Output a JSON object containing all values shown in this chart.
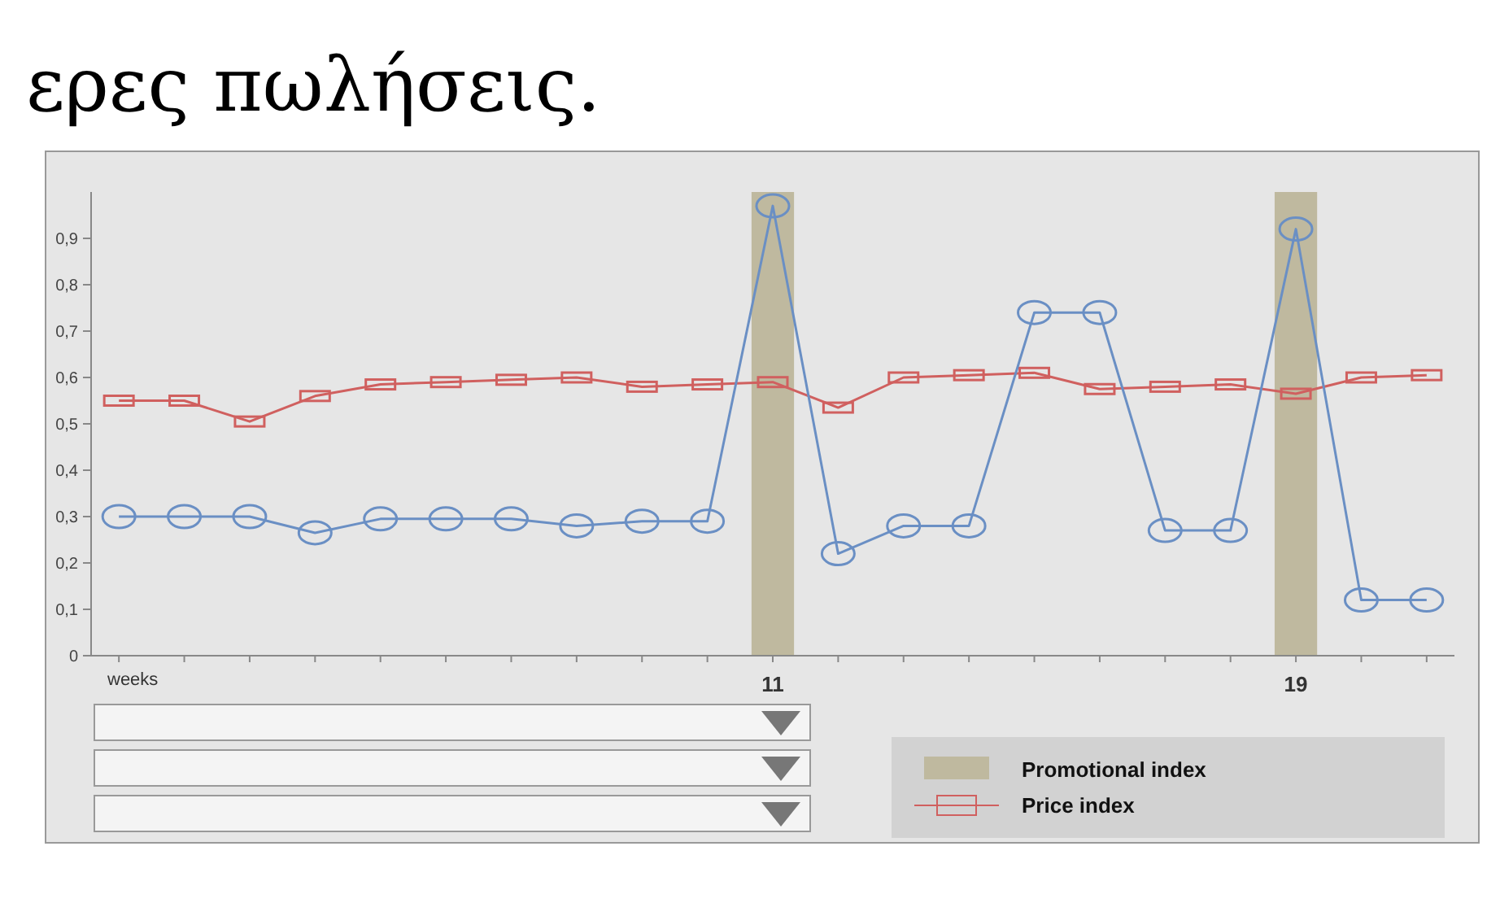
{
  "chart_data": {
    "type": "line",
    "title": "ερες πωλήσεις.",
    "xlabel": "weeks",
    "categories": [
      null,
      null,
      null,
      null,
      null,
      null,
      null,
      null,
      null,
      null,
      "11",
      null,
      null,
      null,
      null,
      null,
      null,
      null,
      "19",
      null,
      null
    ],
    "series": [
      {
        "name": "Promotional index",
        "type": "bar",
        "color": "#bfb99f",
        "values": [
          null,
          null,
          null,
          null,
          null,
          null,
          null,
          null,
          null,
          null,
          1.0,
          null,
          null,
          null,
          null,
          null,
          null,
          null,
          1.0,
          null,
          null
        ]
      },
      {
        "name": "Price index",
        "color": "#d0605f",
        "marker": "square",
        "values": [
          0.55,
          0.55,
          0.505,
          0.56,
          0.585,
          0.59,
          0.595,
          0.6,
          0.58,
          0.585,
          0.59,
          0.535,
          0.6,
          0.605,
          0.61,
          0.575,
          0.58,
          0.585,
          0.565,
          0.6,
          0.605
        ]
      },
      {
        "color": "#6a8fc4",
        "marker": "circle",
        "values": [
          0.3,
          0.3,
          0.3,
          0.265,
          0.295,
          0.295,
          0.295,
          0.28,
          0.29,
          0.29,
          0.97,
          0.22,
          0.28,
          0.28,
          0.74,
          0.74,
          0.27,
          0.27,
          0.92,
          0.12,
          0.12
        ]
      }
    ],
    "ylim": [
      0,
      1.0
    ],
    "yticks": [
      0,
      {
        "value": 0.1,
        "label": "0,1"
      },
      {
        "value": 0.2,
        "label": "0,2"
      },
      {
        "value": 0.3,
        "label": "0,3"
      },
      {
        "value": 0.4,
        "label": "0,4"
      },
      {
        "value": 0.5,
        "label": "0,5"
      },
      {
        "value": 0.6,
        "label": "0,6"
      },
      {
        "value": 0.7,
        "label": "0,7"
      },
      {
        "value": 0.8,
        "label": "0,8"
      },
      {
        "value": 0.9,
        "label": "0,9"
      }
    ],
    "grid": false,
    "legend": "bottom right"
  }
}
